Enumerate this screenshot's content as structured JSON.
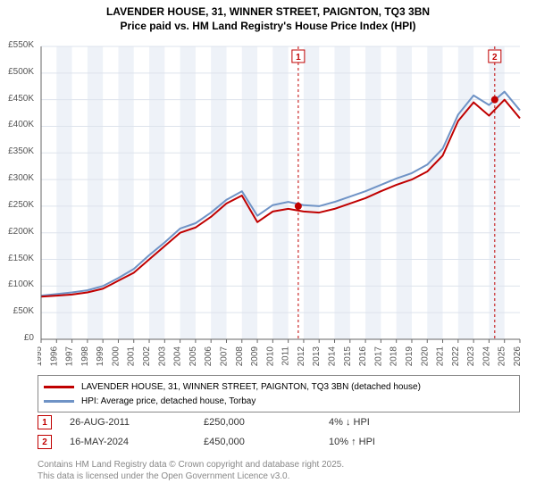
{
  "title_line1": "LAVENDER HOUSE, 31, WINNER STREET, PAIGNTON, TQ3 3BN",
  "title_line2": "Price paid vs. HM Land Registry's House Price Index (HPI)",
  "chart": {
    "type": "line",
    "background_color": "#ffffff",
    "plot_band_color": "#eef2f8",
    "grid_color": "#dde3ec",
    "axis_color": "#666666",
    "label_color": "#555555",
    "label_fontsize": 10,
    "ylim": [
      0,
      550
    ],
    "ytick_step": 50,
    "ylabel_suffix": "K",
    "ylabel_prefix": "£",
    "x_years": [
      1995,
      1996,
      1997,
      1998,
      1999,
      2000,
      2001,
      2002,
      2003,
      2004,
      2005,
      2006,
      2007,
      2008,
      2009,
      2010,
      2011,
      2012,
      2013,
      2014,
      2015,
      2016,
      2017,
      2018,
      2019,
      2020,
      2021,
      2022,
      2023,
      2024,
      2025,
      2026
    ],
    "series": [
      {
        "name": "price_paid",
        "color": "#c00000",
        "width": 2,
        "values": [
          80,
          82,
          84,
          88,
          95,
          110,
          125,
          150,
          175,
          200,
          210,
          230,
          255,
          270,
          220,
          240,
          245,
          240,
          238,
          245,
          255,
          265,
          278,
          290,
          300,
          315,
          345,
          410,
          445,
          420,
          450,
          415
        ]
      },
      {
        "name": "hpi",
        "color": "#6f93c6",
        "width": 2,
        "values": [
          82,
          85,
          88,
          92,
          100,
          115,
          132,
          158,
          182,
          208,
          218,
          238,
          262,
          278,
          232,
          252,
          258,
          252,
          250,
          258,
          268,
          278,
          290,
          302,
          312,
          328,
          358,
          422,
          458,
          440,
          465,
          430
        ]
      }
    ],
    "event_markers": [
      {
        "id": "1",
        "x_year": 2011.65,
        "color": "#c00000"
      },
      {
        "id": "2",
        "x_year": 2024.37,
        "color": "#c00000"
      }
    ],
    "sale_points": [
      {
        "x_year": 2011.65,
        "y": 250,
        "color": "#c00000"
      },
      {
        "x_year": 2024.37,
        "y": 450,
        "color": "#c00000"
      }
    ]
  },
  "legend": {
    "items": [
      {
        "color": "#c00000",
        "label": "LAVENDER HOUSE, 31, WINNER STREET, PAIGNTON, TQ3 3BN (detached house)"
      },
      {
        "color": "#6f93c6",
        "label": "HPI: Average price, detached house, Torbay"
      }
    ]
  },
  "transactions": [
    {
      "id": "1",
      "date": "26-AUG-2011",
      "price": "£250,000",
      "delta": "4% ↓ HPI"
    },
    {
      "id": "2",
      "date": "16-MAY-2024",
      "price": "£450,000",
      "delta": "10% ↑ HPI"
    }
  ],
  "footer_line1": "Contains HM Land Registry data © Crown copyright and database right 2025.",
  "footer_line2": "This data is licensed under the Open Government Licence v3.0."
}
